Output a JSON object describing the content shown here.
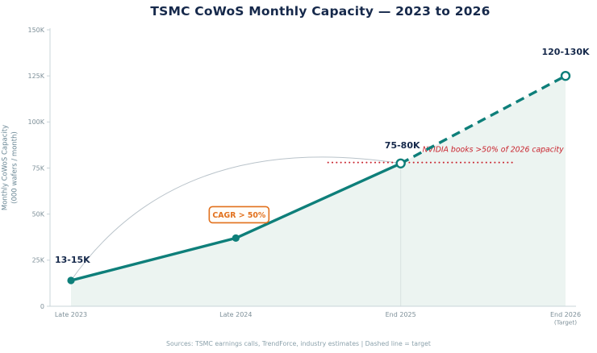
{
  "title": "TSMC CoWoS Monthly Capacity — 2023 to 2026",
  "y_axis": {
    "line1": "Monthly CoWoS Capacity",
    "line2": "(000 wafers / month)"
  },
  "footer": "Sources: TSMC earnings calls, TrendForce, industry estimates  |  Dashed line = target",
  "chart_data": {
    "type": "line",
    "title": "TSMC CoWoS Monthly Capacity — 2023 to 2026",
    "categories": [
      "Late 2023",
      "Late 2024",
      "End 2025",
      "End 2026"
    ],
    "last_category_sub": "(Target)",
    "values": [
      14,
      37,
      77.5,
      125
    ],
    "ylim": [
      0,
      150
    ],
    "yticks": [
      0,
      25,
      50,
      75,
      100,
      125,
      150
    ],
    "ytick_labels": [
      "0",
      "25K",
      "50K",
      "75K",
      "100K",
      "125K",
      "150K"
    ],
    "dashed_from_index": 2,
    "open_markers_from_index": 2,
    "point_labels": [
      {
        "index": 0,
        "text": "13-15K"
      },
      {
        "index": 2,
        "text": "75-80K"
      },
      {
        "index": 3,
        "text": "120-130K"
      }
    ],
    "cagr_badge": "CAGR > 50%",
    "nvidia_note": {
      "text": "NVIDIA books >50% of 2026 capacity",
      "level": 78
    },
    "colors": {
      "line": "#0e7f7a",
      "fill": "#e7f1ee",
      "label": "#16294b",
      "axis": "#c9d4d9",
      "tick_text": "#7d8f98",
      "orange": "#e2711d",
      "red": "#c9242e",
      "arc": "#b9c3ca",
      "divider": "#d8e4e1"
    }
  }
}
